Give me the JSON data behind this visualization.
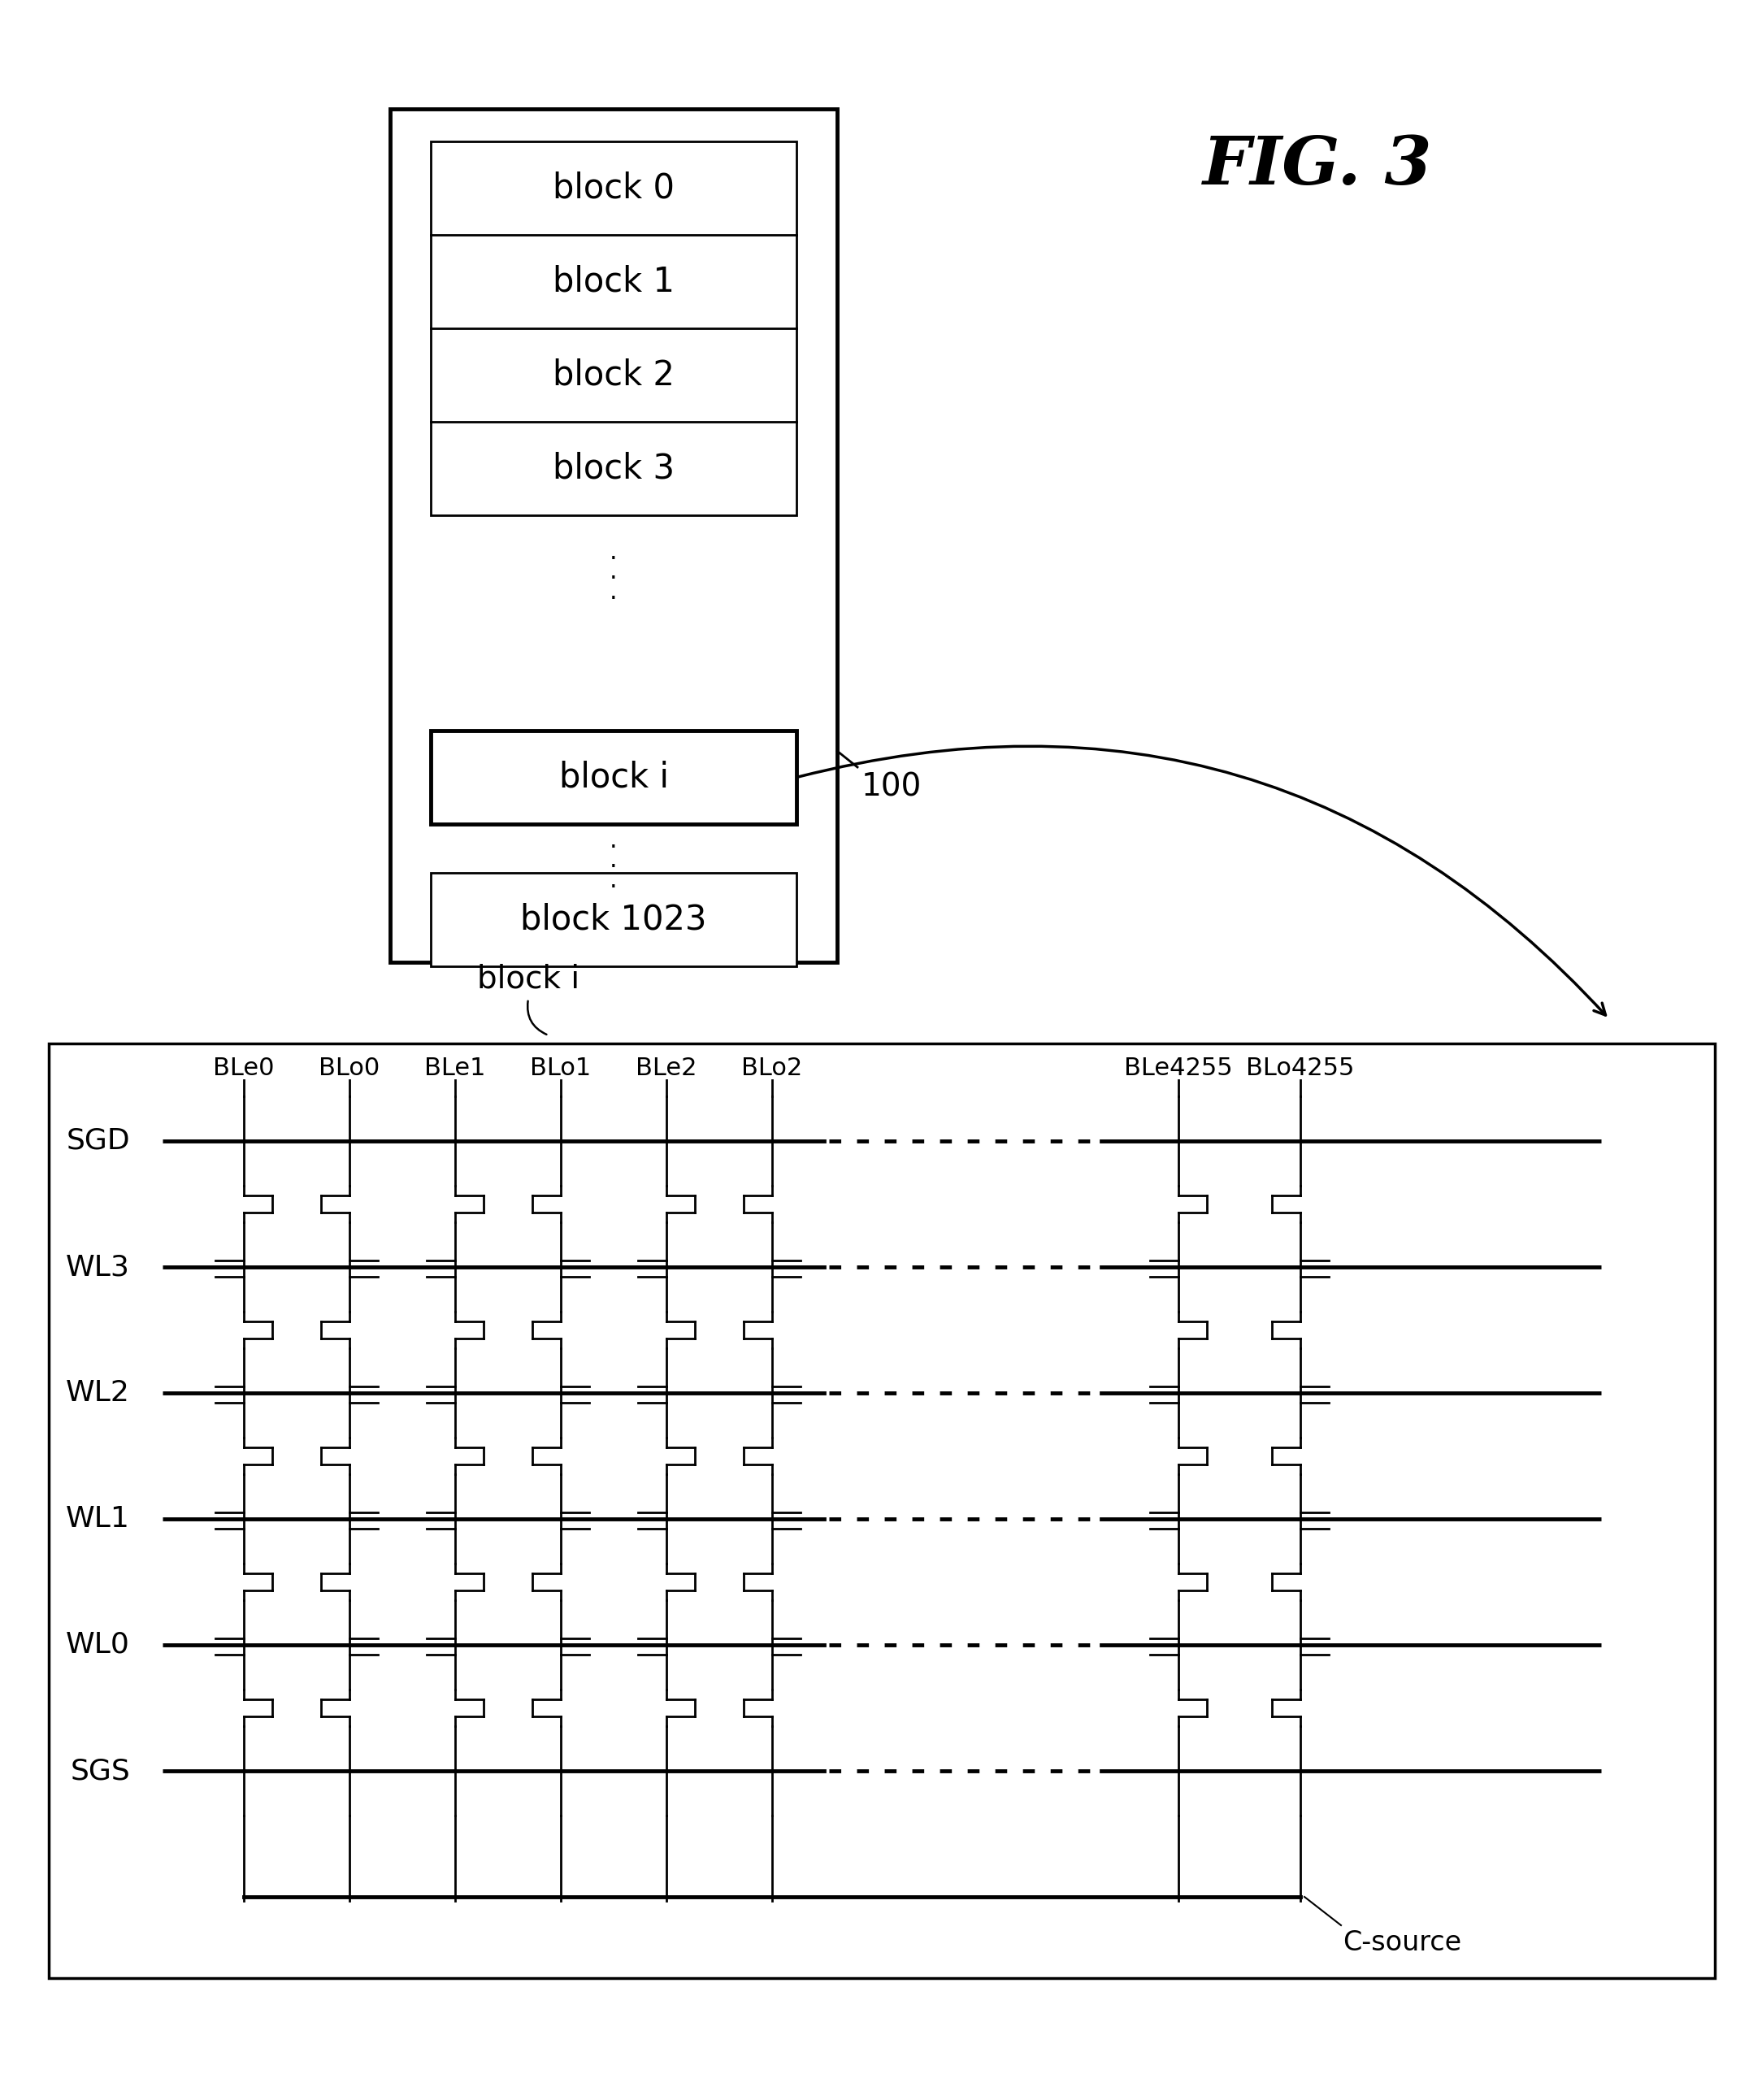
{
  "fig_label": "FIG. 3",
  "top_box_label": "100",
  "blocks": [
    "block 0",
    "block 1",
    "block 2",
    "block 3",
    "block i",
    "block 1023"
  ],
  "block_i_label": "block i",
  "bitlines": [
    "BLe0",
    "BLo0",
    "BLe1",
    "BLo1",
    "BLe2",
    "BLo2",
    "BLe4255",
    "BLo4255"
  ],
  "wordlines": [
    "SGD",
    "WL3",
    "WL2",
    "WL1",
    "WL0",
    "SGS"
  ],
  "csource_label": "C-source",
  "bg_color": "#ffffff",
  "line_color": "#000000"
}
